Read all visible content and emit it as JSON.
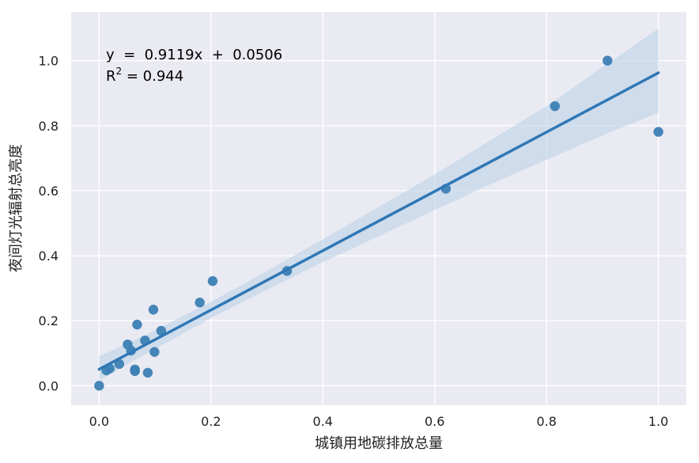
{
  "chart_data": {
    "type": "scatter",
    "title": "",
    "xlabel": "城镇用地碳排放总量",
    "ylabel": "夜间灯光辐射总亮度",
    "xlim": [
      -0.05,
      1.05
    ],
    "ylim": [
      -0.06,
      1.15
    ],
    "xticks": [
      0.0,
      0.2,
      0.4,
      0.6,
      0.8,
      1.0
    ],
    "xtick_labels": [
      "0.0",
      "0.2",
      "0.4",
      "0.6",
      "0.8",
      "1.0"
    ],
    "yticks": [
      0.0,
      0.2,
      0.4,
      0.6,
      0.8,
      1.0
    ],
    "ytick_labels": [
      "0.0",
      "0.2",
      "0.4",
      "0.6",
      "0.8",
      "1.0"
    ],
    "grid": true,
    "background": "#EAEAF2",
    "point_color": "#3C7FB4",
    "line_color": "#2F77B5",
    "band_color": "#B7CFE8",
    "points": [
      {
        "x": 0.0,
        "y": 0.0
      },
      {
        "x": 0.013,
        "y": 0.047
      },
      {
        "x": 0.019,
        "y": 0.053
      },
      {
        "x": 0.036,
        "y": 0.067
      },
      {
        "x": 0.051,
        "y": 0.127
      },
      {
        "x": 0.057,
        "y": 0.108
      },
      {
        "x": 0.064,
        "y": 0.045
      },
      {
        "x": 0.064,
        "y": 0.05
      },
      {
        "x": 0.068,
        "y": 0.188
      },
      {
        "x": 0.082,
        "y": 0.139
      },
      {
        "x": 0.087,
        "y": 0.04
      },
      {
        "x": 0.097,
        "y": 0.234
      },
      {
        "x": 0.099,
        "y": 0.104
      },
      {
        "x": 0.111,
        "y": 0.169
      },
      {
        "x": 0.18,
        "y": 0.256
      },
      {
        "x": 0.203,
        "y": 0.322
      },
      {
        "x": 0.336,
        "y": 0.353
      },
      {
        "x": 0.62,
        "y": 0.606
      },
      {
        "x": 0.815,
        "y": 0.86
      },
      {
        "x": 0.909,
        "y": 1.0
      },
      {
        "x": 1.0,
        "y": 0.781
      }
    ],
    "regression": {
      "slope": 0.9119,
      "intercept": 0.0506,
      "x_range": [
        0.0,
        1.0
      ],
      "ci_band": [
        {
          "x": 0.0,
          "lower": 0.016,
          "upper": 0.09
        },
        {
          "x": 0.05,
          "lower": 0.066,
          "upper": 0.13
        },
        {
          "x": 0.1,
          "lower": 0.113,
          "upper": 0.17
        },
        {
          "x": 0.2,
          "lower": 0.208,
          "upper": 0.258
        },
        {
          "x": 0.3,
          "lower": 0.295,
          "upper": 0.353
        },
        {
          "x": 0.4,
          "lower": 0.38,
          "upper": 0.45
        },
        {
          "x": 0.5,
          "lower": 0.46,
          "upper": 0.55
        },
        {
          "x": 0.6,
          "lower": 0.54,
          "upper": 0.65
        },
        {
          "x": 0.7,
          "lower": 0.62,
          "upper": 0.755
        },
        {
          "x": 0.8,
          "lower": 0.695,
          "upper": 0.86
        },
        {
          "x": 0.9,
          "lower": 0.77,
          "upper": 0.98
        },
        {
          "x": 1.0,
          "lower": 0.84,
          "upper": 1.098
        }
      ]
    },
    "annotations": {
      "equation": "y  =  0.9119x  +  0.0506",
      "r2_prefix": "R",
      "r2_sup": "2",
      "r2_value": " = 0.944"
    }
  }
}
